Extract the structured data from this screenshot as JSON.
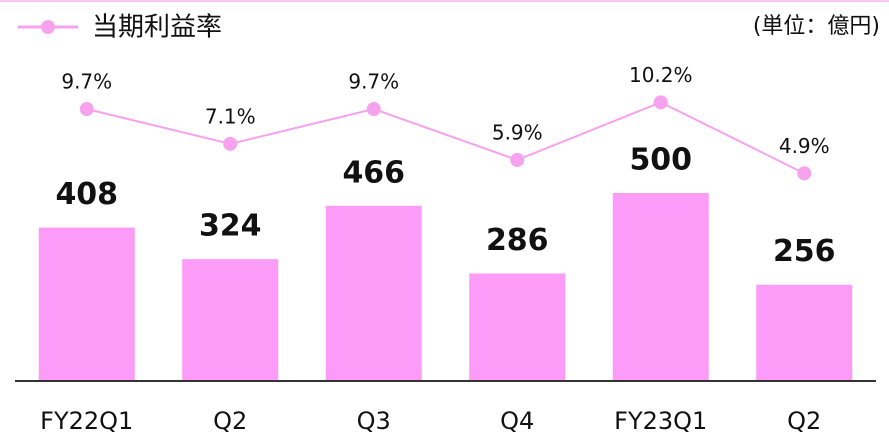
{
  "chart_data": {
    "type": "bar",
    "unit_label": "(単位：億円)",
    "categories": [
      "FY22Q1",
      "Q2",
      "Q3",
      "Q4",
      "FY23Q1",
      "Q2"
    ],
    "series": [
      {
        "type": "bar",
        "color": "#fd9cf8",
        "values": [
          408,
          324,
          466,
          286,
          500,
          256
        ]
      },
      {
        "type": "line",
        "name": "当期利益率",
        "color": "#f6a2ee",
        "axis": "y2",
        "values": [
          9.7,
          7.1,
          9.7,
          5.9,
          10.2,
          4.9
        ],
        "value_labels": [
          "9.7%",
          "7.1%",
          "9.7%",
          "5.9%",
          "10.2%",
          "4.9%"
        ]
      }
    ],
    "ylim": [
      0,
      1000
    ],
    "y2lim": [
      0,
      15
    ],
    "legend": "top-left"
  }
}
